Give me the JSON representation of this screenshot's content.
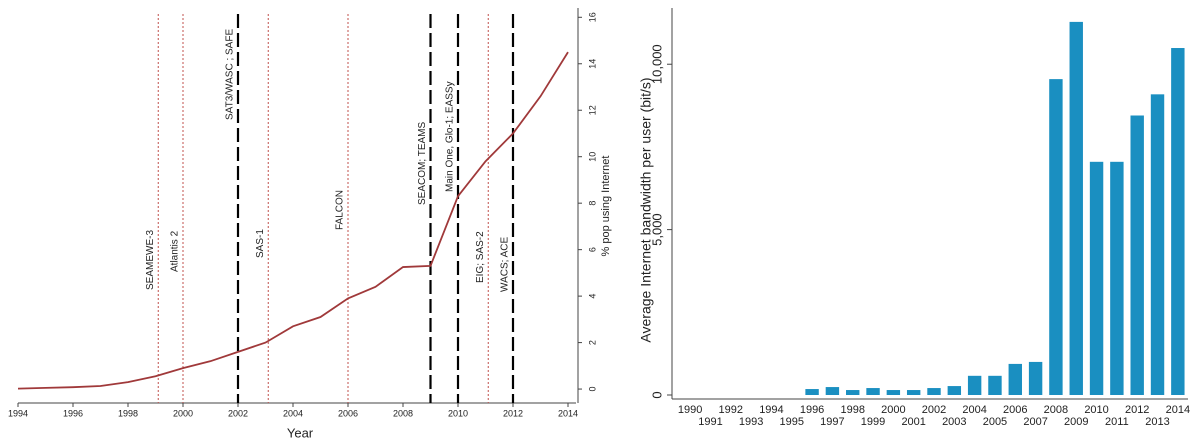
{
  "chart_data": [
    {
      "type": "line",
      "xlabel": "Year",
      "ylabel": "% pop using Internet",
      "x": [
        1994,
        1995,
        1996,
        1997,
        1998,
        1999,
        2000,
        2001,
        2002,
        2003,
        2004,
        2005,
        2006,
        2007,
        2008,
        2009,
        2010,
        2011,
        2012,
        2013,
        2014
      ],
      "series": [
        {
          "color": "#a0393a",
          "values": [
            0.02,
            0.05,
            0.08,
            0.13,
            0.3,
            0.55,
            0.9,
            1.2,
            1.6,
            2.0,
            2.7,
            3.1,
            3.9,
            4.4,
            5.25,
            5.3,
            8.3,
            9.8,
            11.0,
            12.6,
            14.5
          ]
        }
      ],
      "xlim": [
        1994,
        2014
      ],
      "xticks": [
        1994,
        1996,
        1998,
        2000,
        2002,
        2004,
        2006,
        2008,
        2010,
        2012,
        2014
      ],
      "ylim": [
        -0.6,
        16.4
      ],
      "yticks": [
        0,
        2,
        4,
        6,
        8,
        10,
        12,
        14,
        16
      ],
      "annotations": [
        {
          "label": "SEAMEWE-3",
          "x": 1999.1,
          "color": "#c0504d"
        },
        {
          "label": "Atlantis 2",
          "x": 2000,
          "color": "#c0504d"
        },
        {
          "label": "SAT3/WASC ; SAFE",
          "x": 2002,
          "color": "#000000"
        },
        {
          "label": "SAS-1",
          "x": 2003.1,
          "color": "#c0504d"
        },
        {
          "label": "FALCON",
          "x": 2006,
          "color": "#c0504d"
        },
        {
          "label": "SEACOM; TEAMS",
          "x": 2009,
          "color": "#000000"
        },
        {
          "label": "Main One, Glo-1; EASSy",
          "x": 2010,
          "color": "#000000"
        },
        {
          "label": "EIG; SAS-2",
          "x": 2011.1,
          "color": "#c0504d"
        },
        {
          "label": "WACS; ACE",
          "x": 2012,
          "color": "#000000"
        }
      ]
    },
    {
      "type": "bar",
      "ylabel": "Average Internet bandwidth per user (bit/s)",
      "color": "#1a8fc1",
      "categories": [
        "1990",
        "1991",
        "1992",
        "1993",
        "1994",
        "1995",
        "1996",
        "1997",
        "1998",
        "1999",
        "2000",
        "2001",
        "2002",
        "2003",
        "2004",
        "2005",
        "2006",
        "2007",
        "2008",
        "2009",
        "2010",
        "2011",
        "2012",
        "2013",
        "2014"
      ],
      "values": [
        0,
        0,
        0,
        0,
        0,
        0,
        180,
        240,
        150,
        210,
        150,
        150,
        210,
        270,
        580,
        580,
        940,
        1000,
        9550,
        11280,
        7050,
        7050,
        8450,
        9090,
        10490
      ],
      "ylim": [
        0,
        11700
      ],
      "yticks": [
        0,
        {
          "value": 5000,
          "label": "5,000"
        },
        {
          "value": 10000,
          "label": "10,000"
        }
      ]
    }
  ]
}
